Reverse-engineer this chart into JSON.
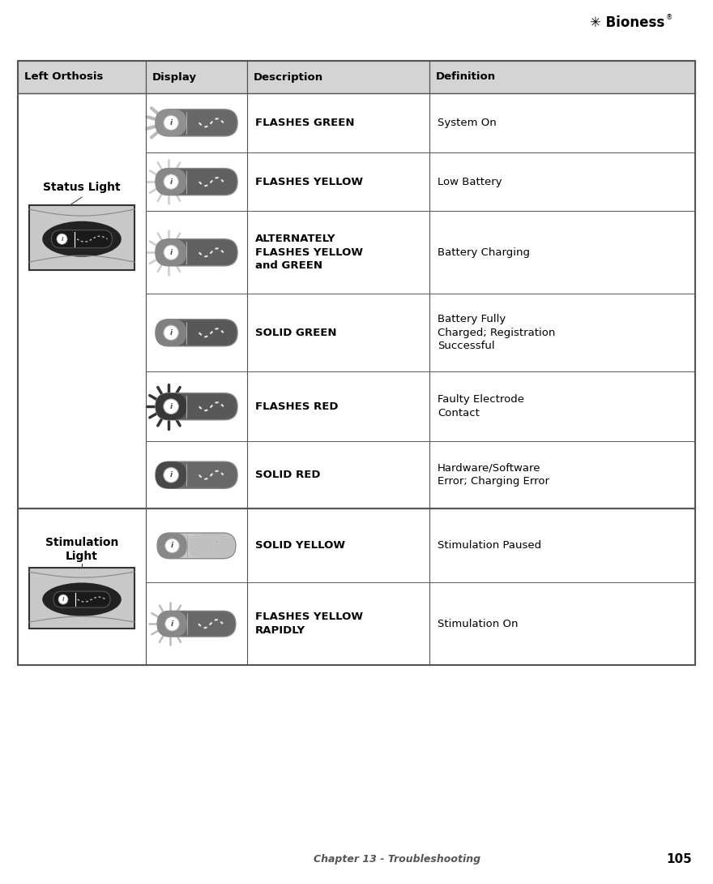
{
  "page_bg": "#ffffff",
  "header_bg": "#d4d4d4",
  "header_text_color": "#000000",
  "border_color": "#666666",
  "footer_text": "Chapter 13 - Troubleshooting",
  "footer_page": "105",
  "col_headers": [
    "Left Orthosis",
    "Display",
    "Description",
    "Definition"
  ],
  "status_light_label": "Status Light",
  "stimulation_light_label": "Stimulation\nLight",
  "rows": [
    {
      "group": "status",
      "description": "FLASHES GREEN",
      "definition": "System On",
      "icon_type": "flashes_green",
      "burst_style": "sector",
      "burst_color": "#bbbbbb",
      "body_color": "#808080",
      "left_cap_color": "#909090",
      "right_body_color": "#686868"
    },
    {
      "group": "status",
      "description": "FLASHES YELLOW",
      "definition": "Low Battery",
      "icon_type": "flashes_yellow",
      "burst_style": "rays",
      "burst_color": "#cccccc",
      "body_color": "#787878",
      "left_cap_color": "#888888",
      "right_body_color": "#606060"
    },
    {
      "group": "status",
      "description": "ALTERNATELY\nFLASHES YELLOW\nand GREEN",
      "definition": "Battery Charging",
      "icon_type": "flashes_yellow_green",
      "burst_style": "rays",
      "burst_color": "#cccccc",
      "body_color": "#787878",
      "left_cap_color": "#888888",
      "right_body_color": "#606060"
    },
    {
      "group": "status",
      "description": "SOLID GREEN",
      "definition": "Battery Fully\nCharged; Registration\nSuccessful",
      "icon_type": "solid_green",
      "burst_style": "none",
      "burst_color": null,
      "body_color": "#707070",
      "left_cap_color": "#808080",
      "right_body_color": "#585858"
    },
    {
      "group": "status",
      "description": "FLASHES RED",
      "definition": "Faulty Electrode\nContact",
      "icon_type": "flashes_red",
      "burst_style": "rays_bold",
      "burst_color": "#333333",
      "body_color": "#404040",
      "left_cap_color": "#383838",
      "right_body_color": "#585858"
    },
    {
      "group": "status",
      "description": "SOLID RED",
      "definition": "Hardware/Software\nError; Charging Error",
      "icon_type": "solid_red",
      "burst_style": "none",
      "burst_color": null,
      "body_color": "#505050",
      "left_cap_color": "#484848",
      "right_body_color": "#686868"
    },
    {
      "group": "stimulation",
      "description": "SOLID YELLOW",
      "definition": "Stimulation Paused",
      "icon_type": "solid_yellow",
      "burst_style": "none",
      "burst_color": null,
      "body_color": "#888888",
      "left_cap_color": "#888888",
      "right_body_color": "#c8c8c8"
    },
    {
      "group": "stimulation",
      "description": "FLASHES YELLOW\nRAPIDLY",
      "definition": "Stimulation On",
      "icon_type": "flashes_yellow_rapidly",
      "burst_style": "rays",
      "burst_color": "#bbbbbb",
      "body_color": "#787878",
      "left_cap_color": "#888888",
      "right_body_color": "#686868"
    }
  ]
}
